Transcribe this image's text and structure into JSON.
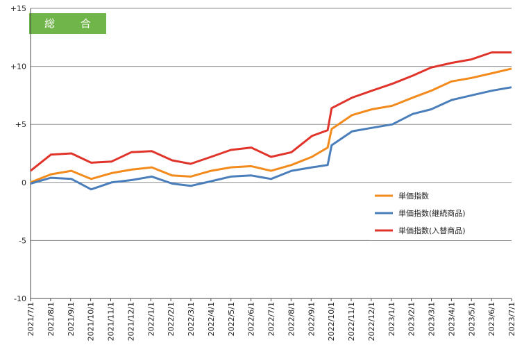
{
  "chart_data": {
    "type": "line",
    "title": "総 合",
    "ylim": [
      -10,
      15
    ],
    "y_ticks": [
      {
        "value": 15,
        "label": "+15"
      },
      {
        "value": 10,
        "label": "+10"
      },
      {
        "value": 5,
        "label": "+5"
      },
      {
        "value": 0,
        "label": "0"
      },
      {
        "value": -5,
        "label": "-5"
      },
      {
        "value": -10,
        "label": "-10"
      }
    ],
    "x_tick_labels": [
      "2021/7/1",
      "2021/8/1",
      "2021/9/1",
      "2021/10/1",
      "2021/11/1",
      "2021/12/1",
      "2022/1/1",
      "2022/2/1",
      "2022/3/1",
      "2022/4/1",
      "2022/5/1",
      "2022/6/1",
      "2022/7/1",
      "2022/8/1",
      "2022/9/1",
      "2022/10/1",
      "2022/11/1",
      "2022/12/1",
      "2023/1/1",
      "2023/2/1",
      "2023/3/1",
      "2023/4/1",
      "2023/5/1",
      "2023/6/1",
      "2023/7/1"
    ],
    "x_start": "2021-07-01",
    "x_end": "2023-07-01",
    "grid": "horizontal",
    "legend_position": "bottom-right",
    "series": [
      {
        "name": "単価指数",
        "color": "#f28a1c",
        "x": [
          "2021-07-01",
          "2021-08-01",
          "2021-09-01",
          "2021-10-01",
          "2021-11-01",
          "2021-12-01",
          "2022-01-01",
          "2022-02-01",
          "2022-03-01",
          "2022-04-01",
          "2022-05-01",
          "2022-06-01",
          "2022-07-01",
          "2022-08-01",
          "2022-09-01",
          "2022-09-25",
          "2022-10-01",
          "2022-11-01",
          "2022-12-01",
          "2023-01-01",
          "2023-02-01",
          "2023-03-01",
          "2023-04-01",
          "2023-05-01",
          "2023-06-01",
          "2023-07-01"
        ],
        "values": [
          0.0,
          0.7,
          1.0,
          0.3,
          0.8,
          1.1,
          1.3,
          0.6,
          0.5,
          1.0,
          1.3,
          1.4,
          1.0,
          1.5,
          2.2,
          3.0,
          4.6,
          5.8,
          6.3,
          6.6,
          7.3,
          7.9,
          8.7,
          9.0,
          9.4,
          9.8
        ]
      },
      {
        "name": "単価指数(継続商品)",
        "color": "#4a7ebb",
        "x": [
          "2021-07-01",
          "2021-08-01",
          "2021-09-01",
          "2021-10-01",
          "2021-11-01",
          "2021-12-01",
          "2022-01-01",
          "2022-02-01",
          "2022-03-01",
          "2022-04-01",
          "2022-05-01",
          "2022-06-01",
          "2022-07-01",
          "2022-08-01",
          "2022-09-01",
          "2022-09-25",
          "2022-10-01",
          "2022-11-01",
          "2022-12-01",
          "2023-01-01",
          "2023-02-01",
          "2023-03-01",
          "2023-04-01",
          "2023-05-01",
          "2023-06-01",
          "2023-07-01"
        ],
        "values": [
          -0.1,
          0.4,
          0.3,
          -0.6,
          0.0,
          0.2,
          0.5,
          -0.1,
          -0.3,
          0.1,
          0.5,
          0.6,
          0.3,
          1.0,
          1.3,
          1.5,
          3.2,
          4.4,
          4.7,
          5.0,
          5.9,
          6.3,
          7.1,
          7.5,
          7.9,
          8.2
        ]
      },
      {
        "name": "単価指数(入替商品)",
        "color": "#e0332a",
        "x": [
          "2021-07-01",
          "2021-08-01",
          "2021-09-01",
          "2021-10-01",
          "2021-11-01",
          "2021-12-01",
          "2022-01-01",
          "2022-02-01",
          "2022-03-01",
          "2022-04-01",
          "2022-05-01",
          "2022-06-01",
          "2022-07-01",
          "2022-08-01",
          "2022-09-01",
          "2022-09-25",
          "2022-10-01",
          "2022-11-01",
          "2022-12-01",
          "2023-01-01",
          "2023-02-01",
          "2023-03-01",
          "2023-04-01",
          "2023-05-01",
          "2023-06-01",
          "2023-07-01"
        ],
        "values": [
          1.0,
          2.4,
          2.5,
          1.7,
          1.8,
          2.6,
          2.7,
          1.9,
          1.6,
          2.2,
          2.8,
          3.0,
          2.2,
          2.6,
          4.0,
          4.5,
          6.4,
          7.3,
          7.9,
          8.5,
          9.2,
          9.9,
          10.3,
          10.6,
          11.2,
          11.2
        ]
      }
    ]
  }
}
